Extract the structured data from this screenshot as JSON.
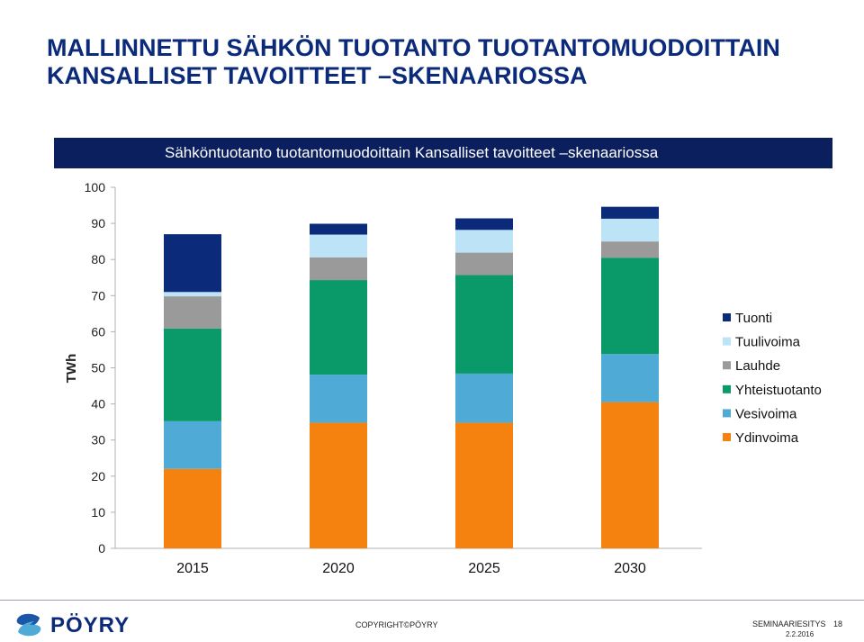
{
  "slide": {
    "title_line1": "MALLINNETTU SÄHKÖN TUOTANTO TUOTANTOMUODOITTAIN",
    "title_line2": "KANSALLISET TAVOITTEET –SKENAARIOSSA"
  },
  "chart_data": {
    "type": "bar",
    "stacked": true,
    "title": "Sähköntuotanto tuotantomuodoittain Kansalliset tavoitteet –skenaariossa",
    "ylabel": "TWh",
    "xlabel": "",
    "ylim": [
      0,
      100
    ],
    "yticks": [
      0,
      10,
      20,
      30,
      40,
      50,
      60,
      70,
      80,
      90,
      100
    ],
    "grid": false,
    "legend_position": "right",
    "categories": [
      "2015",
      "2020",
      "2025",
      "2030"
    ],
    "series": [
      {
        "name": "Ydinvoima",
        "color": "#f5820f",
        "values": [
          22.0,
          34.8,
          34.8,
          40.5
        ]
      },
      {
        "name": "Vesivoima",
        "color": "#4fabd6",
        "values": [
          13.2,
          13.3,
          13.6,
          13.3
        ]
      },
      {
        "name": "Yhteistuotanto",
        "color": "#0a9a6a",
        "values": [
          25.7,
          26.2,
          27.3,
          26.7
        ]
      },
      {
        "name": "Lauhde",
        "color": "#9a9a9a",
        "values": [
          8.9,
          6.3,
          6.2,
          4.5
        ]
      },
      {
        "name": "Tuulivoima",
        "color": "#bde3f7",
        "values": [
          1.2,
          6.3,
          6.3,
          6.3
        ]
      },
      {
        "name": "Tuonti",
        "color": "#0b2a7a",
        "values": [
          16.0,
          3.0,
          3.2,
          3.3
        ]
      }
    ]
  },
  "footer": {
    "logo_text": "PÖYRY",
    "copyright": "COPYRIGHT©PÖYRY",
    "event": "SEMINAARIESITYS",
    "page": "18",
    "date": "2.2.2016"
  }
}
